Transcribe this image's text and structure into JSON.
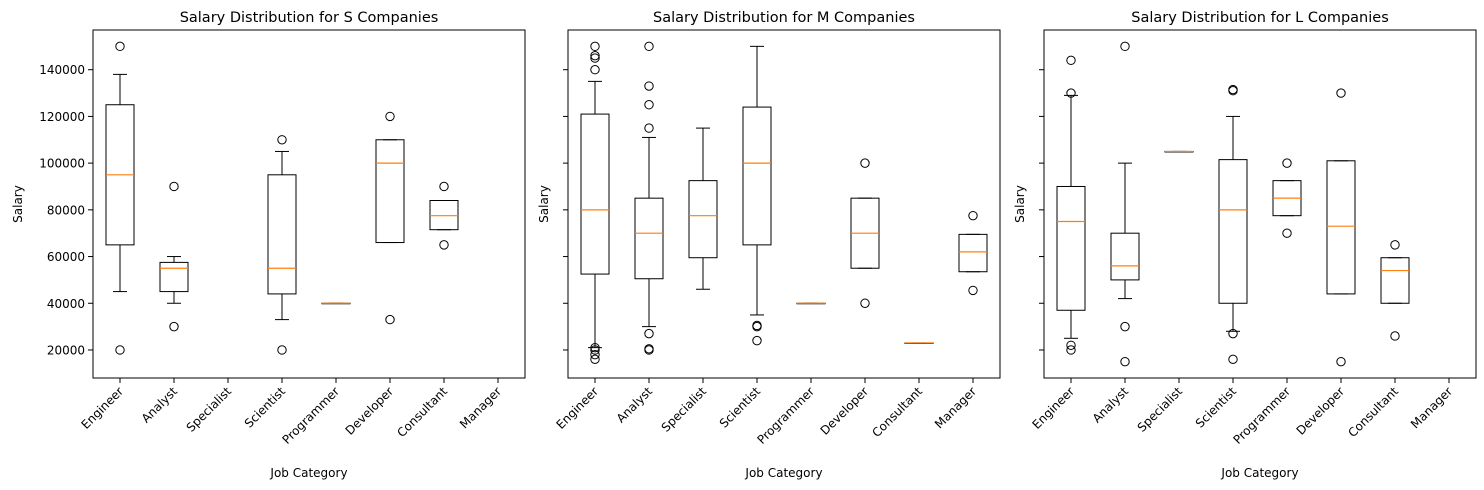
{
  "chart_data": [
    {
      "type": "box",
      "title": "Salary Distribution for S Companies",
      "xlabel": "Job Category",
      "ylabel": "Salary",
      "ylim": [
        8000,
        157000
      ],
      "yticks": [
        20000,
        40000,
        60000,
        80000,
        100000,
        120000,
        140000
      ],
      "show_ytick_labels": true,
      "categories": [
        "Engineer",
        "Analyst",
        "Specialist",
        "Scientist",
        "Programmer",
        "Developer",
        "Consultant",
        "Manager"
      ],
      "boxes": [
        {
          "category": "Engineer",
          "whisker_low": 45000,
          "q1": 65000,
          "median": 95000,
          "q3": 125000,
          "whisker_high": 138000,
          "outliers": [
            20000,
            150000
          ]
        },
        {
          "category": "Analyst",
          "whisker_low": 40000,
          "q1": 45000,
          "median": 55000,
          "q3": 57500,
          "whisker_high": 60000,
          "outliers": [
            30000,
            90000
          ]
        },
        null,
        {
          "category": "Scientist",
          "whisker_low": 33000,
          "q1": 44000,
          "median": 55000,
          "q3": 95000,
          "whisker_high": 105000,
          "outliers": [
            20000,
            110000
          ]
        },
        {
          "category": "Programmer",
          "whisker_low": 40000,
          "q1": 40000,
          "median": 40000,
          "q3": 40000,
          "whisker_high": 40000,
          "outliers": []
        },
        {
          "category": "Developer",
          "whisker_low": 66000,
          "q1": 66000,
          "median": 100000,
          "q3": 110000,
          "whisker_high": 110000,
          "outliers": [
            33000,
            120000
          ]
        },
        {
          "category": "Consultant",
          "whisker_low": 71500,
          "q1": 71500,
          "median": 77500,
          "q3": 84000,
          "whisker_high": 84000,
          "outliers": [
            65000,
            90000
          ]
        },
        null
      ]
    },
    {
      "type": "box",
      "title": "Salary Distribution for M Companies",
      "xlabel": "Job Category",
      "ylabel": "Salary",
      "ylim": [
        8000,
        157000
      ],
      "yticks": [
        20000,
        40000,
        60000,
        80000,
        100000,
        120000,
        140000
      ],
      "show_ytick_labels": false,
      "categories": [
        "Engineer",
        "Analyst",
        "Specialist",
        "Scientist",
        "Programmer",
        "Developer",
        "Consultant",
        "Manager"
      ],
      "boxes": [
        {
          "category": "Engineer",
          "whisker_low": 21000,
          "q1": 52500,
          "median": 80000,
          "q3": 121000,
          "whisker_high": 135000,
          "outliers": [
            16000,
            18000,
            20000,
            21000,
            140000,
            145000,
            146000,
            150000
          ]
        },
        {
          "category": "Analyst",
          "whisker_low": 30000,
          "q1": 50500,
          "median": 70000,
          "q3": 85000,
          "whisker_high": 111000,
          "outliers": [
            20000,
            20500,
            27000,
            115000,
            125000,
            133000,
            150000
          ]
        },
        {
          "category": "Specialist",
          "whisker_low": 46000,
          "q1": 59500,
          "median": 77500,
          "q3": 92500,
          "whisker_high": 115000,
          "outliers": []
        },
        {
          "category": "Scientist",
          "whisker_low": 35000,
          "q1": 65000,
          "median": 100000,
          "q3": 124000,
          "whisker_high": 150000,
          "outliers": [
            24000,
            30000,
            30500
          ]
        },
        {
          "category": "Programmer",
          "whisker_low": 40000,
          "q1": 40000,
          "median": 40000,
          "q3": 40000,
          "whisker_high": 40000,
          "outliers": []
        },
        {
          "category": "Developer",
          "whisker_low": 55000,
          "q1": 55000,
          "median": 70000,
          "q3": 85000,
          "whisker_high": 85000,
          "outliers": [
            40000,
            100000
          ]
        },
        {
          "category": "Consultant",
          "whisker_low": 23000,
          "q1": 23000,
          "median": 23000,
          "q3": 23000,
          "whisker_high": 23000,
          "outliers": []
        },
        {
          "category": "Manager",
          "whisker_low": 53500,
          "q1": 53500,
          "median": 62000,
          "q3": 69500,
          "whisker_high": 69500,
          "outliers": [
            45500,
            77500
          ]
        }
      ]
    },
    {
      "type": "box",
      "title": "Salary Distribution for L Companies",
      "xlabel": "Job Category",
      "ylabel": "Salary",
      "ylim": [
        8000,
        157000
      ],
      "yticks": [
        20000,
        40000,
        60000,
        80000,
        100000,
        120000,
        140000
      ],
      "show_ytick_labels": false,
      "categories": [
        "Engineer",
        "Analyst",
        "Specialist",
        "Scientist",
        "Programmer",
        "Developer",
        "Consultant",
        "Manager"
      ],
      "boxes": [
        {
          "category": "Engineer",
          "whisker_low": 25000,
          "q1": 37000,
          "median": 75000,
          "q3": 90000,
          "whisker_high": 129000,
          "outliers": [
            20000,
            22000,
            130000,
            144000
          ]
        },
        {
          "category": "Analyst",
          "whisker_low": 42000,
          "q1": 50000,
          "median": 56000,
          "q3": 70000,
          "whisker_high": 100000,
          "outliers": [
            15000,
            30000,
            150000
          ]
        },
        {
          "category": "Specialist",
          "whisker_low": 105000,
          "q1": 105000,
          "median": 105000,
          "q3": 105000,
          "whisker_high": 105000,
          "outliers": []
        },
        {
          "category": "Scientist",
          "whisker_low": 28000,
          "q1": 40000,
          "median": 80000,
          "q3": 101500,
          "whisker_high": 120000,
          "outliers": [
            16000,
            27000,
            131000,
            131500
          ]
        },
        {
          "category": "Programmer",
          "whisker_low": 77500,
          "q1": 77500,
          "median": 85000,
          "q3": 92500,
          "whisker_high": 92500,
          "outliers": [
            70000,
            100000
          ]
        },
        {
          "category": "Developer",
          "whisker_low": 44000,
          "q1": 44000,
          "median": 73000,
          "q3": 101000,
          "whisker_high": 101000,
          "outliers": [
            15000,
            130000
          ]
        },
        {
          "category": "Consultant",
          "whisker_low": 40000,
          "q1": 40000,
          "median": 54000,
          "q3": 59500,
          "whisker_high": 59500,
          "outliers": [
            26000,
            65000
          ]
        },
        null
      ]
    }
  ]
}
